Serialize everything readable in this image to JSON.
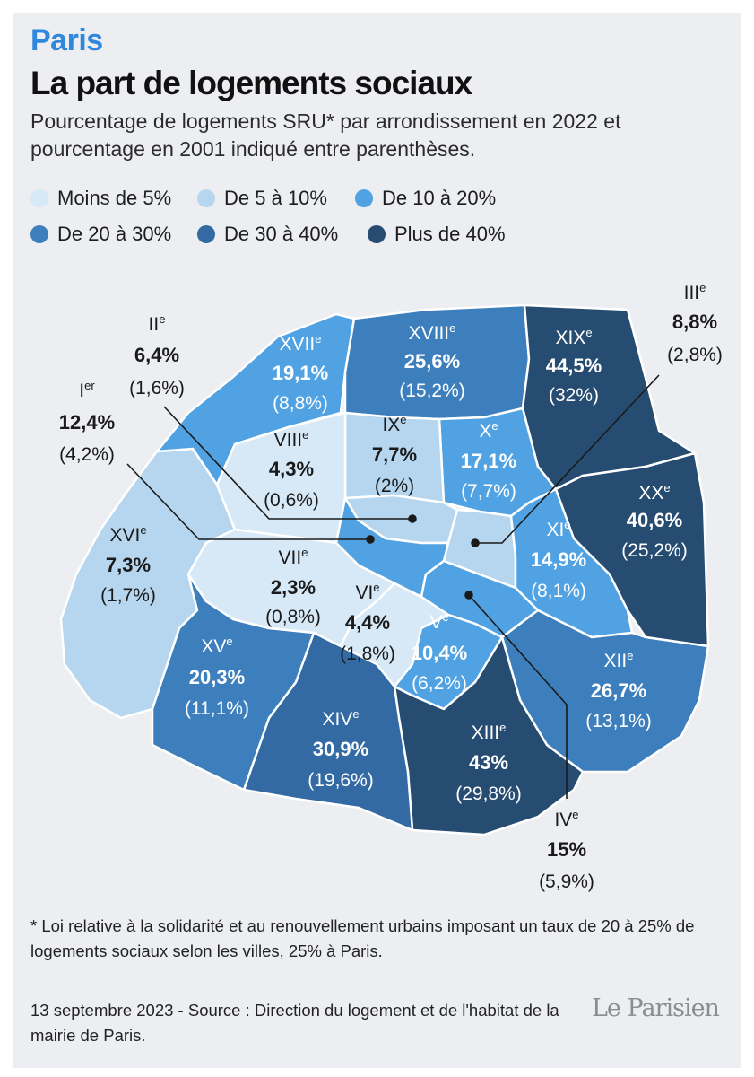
{
  "kicker": "Paris",
  "title": "La part de logements sociaux",
  "subtitle": "Pourcentage de logements SRU* par arrondissement en 2022 et pourcentage en 2001 indiqué entre parenthèses.",
  "legend": [
    {
      "label": "Moins de 5%",
      "color": "#d7e8f6"
    },
    {
      "label": "De 5 à 10%",
      "color": "#b6d6ef"
    },
    {
      "label": "De 10 à 20%",
      "color": "#51a2e3"
    },
    {
      "label": "De 20 à 30%",
      "color": "#3d7fbd"
    },
    {
      "label": "De 30 à 40%",
      "color": "#336aa3"
    },
    {
      "label": "Plus de 40%",
      "color": "#274c71"
    }
  ],
  "arrondissements": [
    {
      "id": "I",
      "name": "I",
      "sup": "er",
      "pct_2022": "12,4%",
      "pct_2001": "(4,2%)",
      "color": "#51a2e3"
    },
    {
      "id": "II",
      "name": "II",
      "sup": "e",
      "pct_2022": "6,4%",
      "pct_2001": "(1,6%)",
      "color": "#b6d6ef"
    },
    {
      "id": "III",
      "name": "III",
      "sup": "e",
      "pct_2022": "8,8%",
      "pct_2001": "(2,8%)",
      "color": "#b6d6ef"
    },
    {
      "id": "IV",
      "name": "IV",
      "sup": "e",
      "pct_2022": "15%",
      "pct_2001": "(5,9%)",
      "color": "#51a2e3"
    },
    {
      "id": "V",
      "name": "V",
      "sup": "e",
      "pct_2022": "10,4%",
      "pct_2001": "(6,2%)",
      "color": "#51a2e3"
    },
    {
      "id": "VI",
      "name": "VI",
      "sup": "e",
      "pct_2022": "4,4%",
      "pct_2001": "(1,8%)",
      "color": "#d7e8f6"
    },
    {
      "id": "VII",
      "name": "VII",
      "sup": "e",
      "pct_2022": "2,3%",
      "pct_2001": "(0,8%)",
      "color": "#d7e8f6"
    },
    {
      "id": "VIII",
      "name": "VIII",
      "sup": "e",
      "pct_2022": "4,3%",
      "pct_2001": "(0,6%)",
      "color": "#d7e8f6"
    },
    {
      "id": "IX",
      "name": "IX",
      "sup": "e",
      "pct_2022": "7,7%",
      "pct_2001": "(2%)",
      "color": "#b6d6ef"
    },
    {
      "id": "X",
      "name": "X",
      "sup": "e",
      "pct_2022": "17,1%",
      "pct_2001": "(7,7%)",
      "color": "#51a2e3"
    },
    {
      "id": "XI",
      "name": "XI",
      "sup": "e",
      "pct_2022": "14,9%",
      "pct_2001": "(8,1%)",
      "color": "#51a2e3"
    },
    {
      "id": "XII",
      "name": "XII",
      "sup": "e",
      "pct_2022": "26,7%",
      "pct_2001": "(13,1%)",
      "color": "#3d7fbd"
    },
    {
      "id": "XIII",
      "name": "XIII",
      "sup": "e",
      "pct_2022": "43%",
      "pct_2001": "(29,8%)",
      "color": "#274c71"
    },
    {
      "id": "XIV",
      "name": "XIV",
      "sup": "e",
      "pct_2022": "30,9%",
      "pct_2001": "(19,6%)",
      "color": "#336aa3"
    },
    {
      "id": "XV",
      "name": "XV",
      "sup": "e",
      "pct_2022": "20,3%",
      "pct_2001": "(11,1%)",
      "color": "#3d7fbd"
    },
    {
      "id": "XVI",
      "name": "XVI",
      "sup": "e",
      "pct_2022": "7,3%",
      "pct_2001": "(1,7%)",
      "color": "#b6d6ef"
    },
    {
      "id": "XVII",
      "name": "XVII",
      "sup": "e",
      "pct_2022": "19,1%",
      "pct_2001": "(8,8%)",
      "color": "#51a2e3"
    },
    {
      "id": "XVIII",
      "name": "XVIII",
      "sup": "e",
      "pct_2022": "25,6%",
      "pct_2001": "(15,2%)",
      "color": "#3d7fbd"
    },
    {
      "id": "XIX",
      "name": "XIX",
      "sup": "e",
      "pct_2022": "44,5%",
      "pct_2001": "(32%)",
      "color": "#274c71"
    },
    {
      "id": "XX",
      "name": "XX",
      "sup": "e",
      "pct_2022": "40,6%",
      "pct_2001": "(25,2%)",
      "color": "#274c71"
    }
  ],
  "footnote": "* Loi relative à la solidarité et au renouvellement urbains imposant un taux de 20 à 25% de logements sociaux selon les villes, 25% à Paris.",
  "footer": "13 septembre 2023 - Source : Direction du logement et de l'habitat de la mairie de Paris.",
  "logo": "Le Parisien"
}
